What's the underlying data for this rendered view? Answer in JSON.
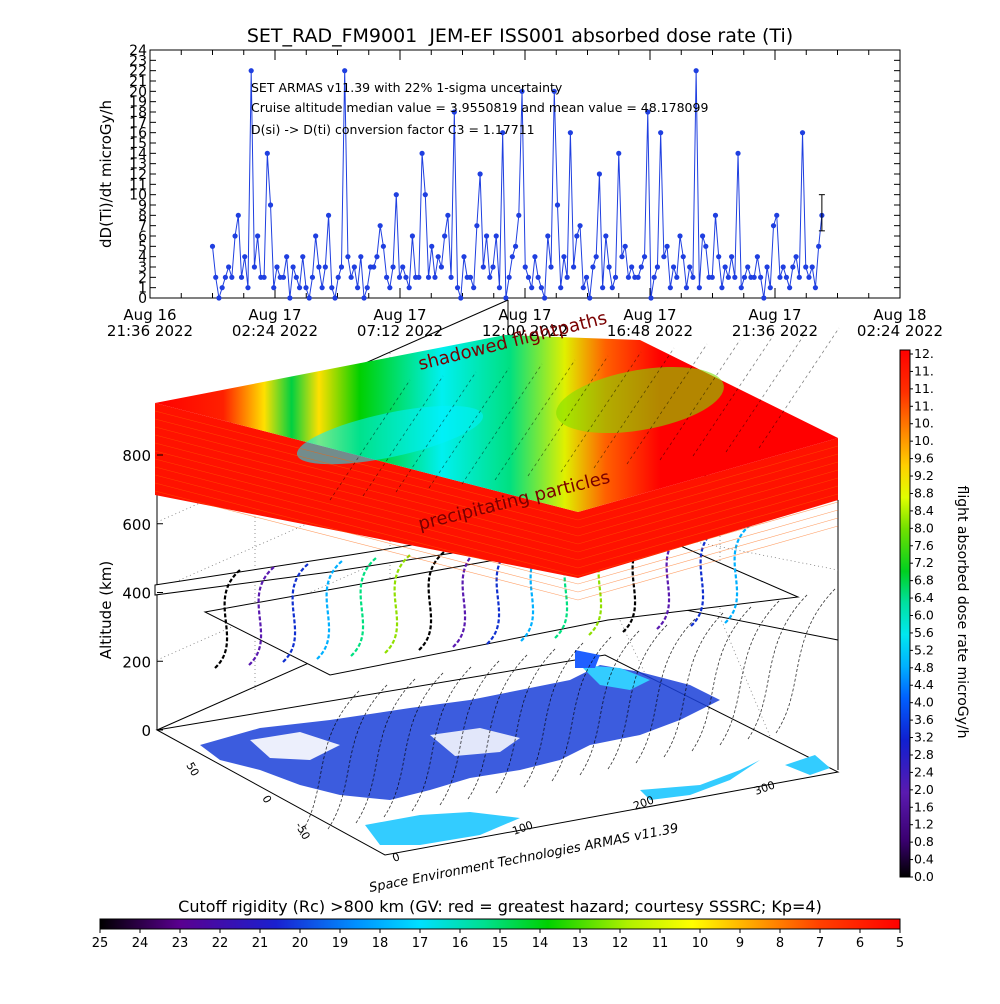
{
  "chart_data": [
    {
      "type": "scatter",
      "title": "SET_RAD_FM9001  JEM-EF ISS001 absorbed dose rate (Ti)",
      "ylabel": "dD(Ti)/dt microGy/h",
      "ylim": [
        0,
        24
      ],
      "yticks": [
        "0",
        "1",
        "2",
        "3",
        "4",
        "5",
        "6",
        "7",
        "8",
        "9",
        "10",
        "11",
        "12",
        "13",
        "14",
        "15",
        "16",
        "17",
        "18",
        "19",
        "20",
        "21",
        "22",
        "23",
        "24"
      ],
      "xlim": [
        "2022-08-16 21:36",
        "2022-08-18 02:24"
      ],
      "xticks": [
        {
          "line1": "Aug 16",
          "line2": "21:36 2022"
        },
        {
          "line1": "Aug 17",
          "line2": "02:24 2022"
        },
        {
          "line1": "Aug 17",
          "line2": "07:12 2022"
        },
        {
          "line1": "Aug 17",
          "line2": "12:00 2022"
        },
        {
          "line1": "Aug 17",
          "line2": "16:48 2022"
        },
        {
          "line1": "Aug 17",
          "line2": "21:36 2022"
        },
        {
          "line1": "Aug 18",
          "line2": "02:24 2022"
        }
      ],
      "annotations": [
        "SET ARMAS v11.39 with 22% 1-sigma uncertainty",
        "Cruise altitude median value = 3.9550819 and mean value = 48.178099",
        "D(si) -> D(ti) conversion factor C3 = 1.17711"
      ],
      "series": [
        {
          "x_start": "2022-08-17 00:00",
          "x_end": "2022-08-17 23:24",
          "y_sampled": [
            5,
            2,
            0,
            1,
            2,
            3,
            2,
            6,
            8,
            2,
            4,
            1,
            22,
            3,
            6,
            2,
            2,
            14,
            9,
            1,
            3,
            2,
            2,
            4,
            0,
            3,
            2,
            1,
            4,
            1,
            0,
            2,
            6,
            3,
            1,
            3,
            8,
            1,
            0,
            2,
            3,
            22,
            4,
            2,
            3,
            1,
            4,
            0,
            1,
            3,
            3,
            4,
            7,
            5,
            2,
            1,
            3,
            10,
            2,
            3,
            2,
            1,
            6,
            2,
            2,
            14,
            10,
            2,
            5,
            2,
            4,
            3,
            6,
            8,
            2,
            18,
            1,
            0,
            4,
            2,
            2,
            1,
            7,
            12,
            3,
            6,
            2,
            3,
            6,
            1,
            16,
            0,
            2,
            4,
            5,
            8,
            20,
            3,
            2,
            1,
            4,
            2,
            1,
            0,
            6,
            3,
            20,
            9,
            1,
            4,
            2,
            16,
            3,
            6,
            7,
            1,
            2,
            0,
            3,
            4,
            12,
            1,
            6,
            3,
            1,
            2,
            14,
            4,
            5,
            2,
            3,
            2,
            2,
            3,
            4,
            18,
            0,
            2,
            3,
            16,
            4,
            5,
            1,
            3,
            2,
            6,
            4,
            1,
            3,
            2,
            22,
            1,
            6,
            5,
            2,
            2,
            8,
            4,
            1,
            3,
            2,
            4,
            2,
            14,
            1,
            2,
            3,
            2,
            2,
            4,
            2,
            0,
            3,
            1,
            7,
            8,
            2,
            3,
            2,
            1,
            3,
            4,
            2,
            16,
            3,
            2,
            3,
            1,
            5,
            8
          ]
        }
      ],
      "error_bar": {
        "x": "2022-08-17 23:24",
        "low": 6.5,
        "high": 10
      }
    },
    {
      "type": "heatmap",
      "description_labels": [
        "shadowed flightpaths",
        "precipitating particles"
      ],
      "zlabel": "Altitude (km)",
      "zticks": [
        "0",
        "200",
        "400",
        "600",
        "800"
      ],
      "credit": "Space Environment Technologies ARMAS v11.39",
      "lat_ticks": [
        "50",
        "0",
        "-50"
      ],
      "lon_ticks": [
        "0",
        "100",
        "200",
        "300"
      ],
      "dose_colorbar": {
        "label": "flight absorbed dose rate microGy/h",
        "ticks": [
          "0.0",
          "0.4",
          "0.8",
          "1.2",
          "1.6",
          "2.0",
          "2.4",
          "2.8",
          "3.2",
          "3.6",
          "4.0",
          "4.4",
          "4.8",
          "5.2",
          "5.6",
          "6.0",
          "6.4",
          "6.8",
          "7.2",
          "7.6",
          "8.0",
          "8.4",
          "8.8",
          "9.2",
          "9.6",
          "10.",
          "10.",
          "11.",
          "11.",
          "11.",
          "12."
        ]
      },
      "rigidity_colorbar": {
        "label": "Cutoff rigidity (Rc) >800 km (GV: red = greatest hazard; courtesy SSSRC; Kp=4)",
        "ticks": [
          "25",
          "24",
          "23",
          "22",
          "21",
          "20",
          "19",
          "18",
          "17",
          "16",
          "15",
          "14",
          "13",
          "12",
          "11",
          "10",
          "9",
          "8",
          "7",
          "6",
          "5"
        ]
      }
    }
  ],
  "colors": {
    "series": "#1f3fe0",
    "hazard": "#ff1a00",
    "spectrum": [
      "#000000",
      "#2a0070",
      "#5a008a",
      "#2020c0",
      "#0050ff",
      "#00a0ff",
      "#00e0ff",
      "#00e090",
      "#00d000",
      "#90e000",
      "#ffff00",
      "#ffa000",
      "#ff5000",
      "#ff0000"
    ]
  }
}
